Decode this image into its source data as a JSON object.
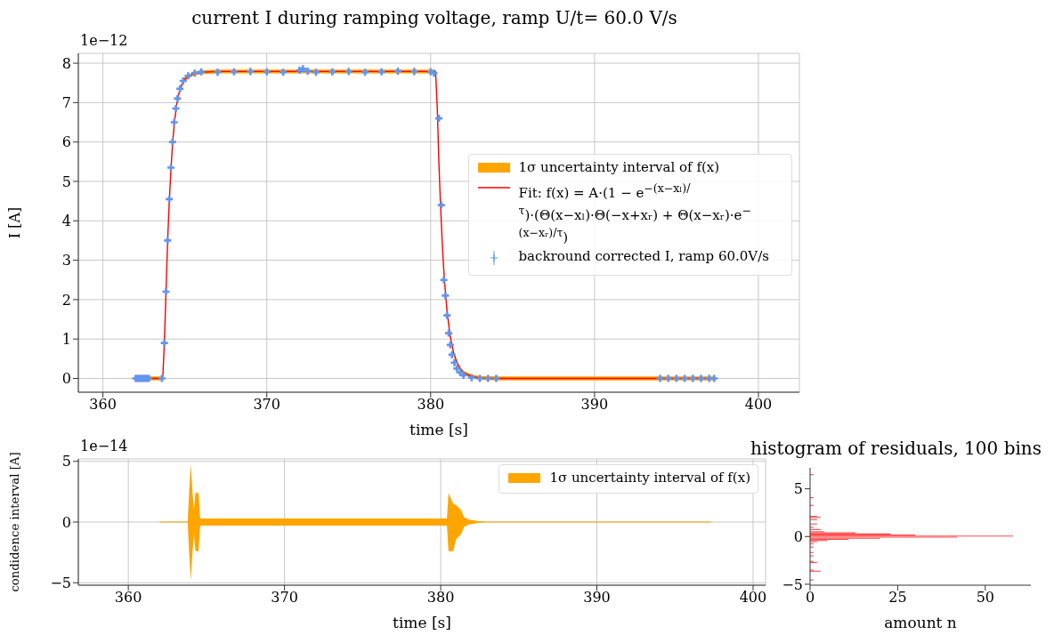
{
  "chart_data": [
    {
      "type": "line",
      "title": "current I during ramping voltage, ramp U/t= 60.0 V/s",
      "xlabel": "time [s]",
      "ylabel": "I [A]",
      "xlim": [
        358.5,
        402.5
      ],
      "xticks": [
        360,
        370,
        380,
        390,
        400
      ],
      "ylim": [
        -0.35,
        8.25
      ],
      "yticks": [
        0,
        1,
        2,
        3,
        4,
        5,
        6,
        7,
        8
      ],
      "grid": true,
      "legend": "right",
      "annotations": [
        "1e−12"
      ],
      "series": [
        {
          "type": "area",
          "name": "1σ uncertainty interval of f(x)",
          "color": "#ffa500",
          "x": [
            362,
            363.65,
            363.75,
            363.85,
            363.95,
            364.05,
            364.15,
            364.25,
            364.35,
            364.5,
            364.7,
            365,
            365.5,
            366,
            367,
            380.3,
            380.4,
            380.5,
            380.6,
            380.7,
            380.8,
            380.9,
            381,
            381.2,
            381.4,
            381.6,
            381.8,
            382,
            382.5,
            383,
            384,
            397.3
          ],
          "values": [
            null,
            null,
            null,
            null,
            null,
            null,
            null,
            null,
            null,
            null,
            null,
            null,
            null,
            null,
            null,
            null,
            null,
            null,
            null,
            null,
            null,
            null,
            null,
            null,
            null,
            null,
            null,
            null,
            null,
            null,
            null,
            null
          ],
          "lower": [
            -0.05,
            -0.05,
            0.85,
            2.15,
            3.45,
            4.45,
            5.25,
            5.9,
            6.4,
            6.9,
            7.3,
            7.55,
            7.68,
            7.72,
            7.74,
            7.74,
            6.85,
            5.45,
            4.35,
            3.45,
            2.7,
            2.15,
            1.65,
            1.0,
            0.6,
            0.35,
            0.2,
            0.1,
            0.0,
            -0.04,
            -0.05,
            -0.05
          ],
          "upper": [
            0.05,
            0.05,
            0.95,
            2.25,
            3.55,
            4.55,
            5.35,
            6.0,
            6.5,
            7.0,
            7.4,
            7.65,
            7.78,
            7.82,
            7.84,
            7.84,
            6.95,
            5.55,
            4.45,
            3.55,
            2.8,
            2.25,
            1.75,
            1.1,
            0.7,
            0.45,
            0.3,
            0.2,
            0.1,
            0.06,
            0.05,
            0.05
          ]
        },
        {
          "type": "line",
          "name": "Fit: f(x) = A·(1 − e$^{−(x−xₗ)/τ}$)·(Θ(x−xₗ)·Θ(−x+xᵣ) + Θ(x−xᵣ)·e$^{−(x−xᵣ)/τ}$)",
          "color": "#ff0000",
          "x": [
            362,
            363.65,
            363.75,
            363.85,
            363.95,
            364.05,
            364.15,
            364.25,
            364.35,
            364.5,
            364.7,
            365,
            365.5,
            366,
            367,
            380.3,
            380.4,
            380.5,
            380.6,
            380.7,
            380.8,
            380.9,
            381,
            381.2,
            381.4,
            381.6,
            381.8,
            382,
            382.5,
            383,
            384,
            397.3
          ],
          "values": [
            0,
            0,
            0.9,
            2.2,
            3.5,
            4.5,
            5.3,
            5.95,
            6.45,
            6.95,
            7.35,
            7.6,
            7.73,
            7.77,
            7.79,
            7.79,
            6.9,
            5.5,
            4.4,
            3.5,
            2.75,
            2.2,
            1.7,
            1.05,
            0.65,
            0.4,
            0.25,
            0.15,
            0.05,
            0.01,
            0,
            0
          ]
        },
        {
          "type": "scatter",
          "marker": "cross",
          "name": "backround corrected I, ramp 60.0V/s",
          "color": "#6495ed",
          "x": [
            362,
            362.1,
            362.2,
            362.3,
            362.4,
            362.5,
            362.6,
            362.7,
            362.8,
            363.6,
            363.75,
            363.85,
            363.95,
            364.05,
            364.15,
            364.25,
            364.35,
            364.45,
            364.55,
            364.7,
            364.9,
            365.2,
            365.6,
            366,
            367,
            368,
            369,
            370,
            371,
            372,
            372.2,
            372.5,
            373,
            374,
            375,
            376,
            377,
            378,
            379,
            380,
            380.2,
            380.5,
            380.65,
            380.8,
            380.9,
            381,
            381.1,
            381.2,
            381.3,
            381.45,
            381.6,
            381.8,
            382,
            382.5,
            383,
            383.5,
            384,
            394,
            394.5,
            395,
            395.5,
            396,
            396.5,
            397,
            397.3
          ],
          "values": [
            0,
            0,
            0,
            0,
            0,
            0,
            0,
            0,
            0,
            0,
            0.9,
            2.2,
            3.5,
            4.55,
            5.35,
            6.0,
            6.5,
            6.85,
            7.1,
            7.35,
            7.55,
            7.68,
            7.75,
            7.78,
            7.77,
            7.78,
            7.79,
            7.78,
            7.77,
            7.82,
            7.86,
            7.8,
            7.77,
            7.78,
            7.79,
            7.77,
            7.78,
            7.8,
            7.79,
            7.78,
            7.75,
            6.6,
            4.4,
            2.5,
            2.1,
            1.6,
            1.15,
            0.85,
            0.6,
            0.4,
            0.25,
            0.15,
            0.08,
            0.02,
            0,
            0,
            0,
            0,
            0,
            0,
            0,
            0,
            0,
            0,
            0
          ]
        }
      ]
    },
    {
      "type": "area",
      "xlabel": "time [s]",
      "ylabel": "condidence interval [A]",
      "xlim": [
        356.8,
        400.8
      ],
      "xticks": [
        360,
        370,
        380,
        390,
        400
      ],
      "ylim": [
        -5.2,
        5.2
      ],
      "yticks": [
        -5,
        0,
        5
      ],
      "grid": true,
      "legend": "top right",
      "annotations": [
        "1e−14"
      ],
      "series": [
        {
          "type": "line",
          "name": "1σ uncertainty interval of f(x)",
          "color": "#ffa500",
          "x": [
            362,
            363.8,
            363.9,
            364.0,
            364.1,
            364.2,
            364.3,
            364.5,
            364.6,
            365,
            380.4,
            380.5,
            380.8,
            381.0,
            381.3,
            381.5,
            381.8,
            382.5,
            383,
            397.3
          ],
          "values": [
            0,
            0,
            0,
            0,
            0,
            0,
            0,
            0,
            0,
            0,
            0,
            0,
            0,
            0,
            0,
            0,
            0,
            0,
            0,
            0
          ],
          "lower": [
            0,
            0,
            -2.7,
            -4.8,
            -2.7,
            -1,
            -2.4,
            -2.4,
            -0.3,
            -0.3,
            -0.3,
            -2.4,
            -2.4,
            -1.4,
            -1,
            -0.4,
            -0.2,
            -0.05,
            0,
            0
          ],
          "upper": [
            0,
            0,
            2.7,
            4.8,
            2.7,
            1,
            2.4,
            2.4,
            0.3,
            0.3,
            0.3,
            2.4,
            1.5,
            1.4,
            1,
            0.4,
            0.2,
            0.05,
            0,
            0
          ]
        }
      ]
    },
    {
      "type": "histogram",
      "orientation": "horizontal",
      "title": "histogram of residuals, 100 bins",
      "xlabel": "amount n",
      "xlim": [
        0,
        63
      ],
      "xticks": [
        0,
        25,
        50
      ],
      "ylim": [
        -5.1,
        7.2
      ],
      "yticks": [
        -5,
        0,
        5
      ],
      "color": "#ff4d4d",
      "bins": [
        -4.85,
        -4.735,
        -4.62,
        -4.505,
        -4.39,
        -4.275,
        -4.16,
        -4.045,
        -3.93,
        -3.815,
        -3.7,
        -3.585,
        -3.47,
        -3.355,
        -3.24,
        -3.125,
        -3.01,
        -2.895,
        -2.78,
        -2.665,
        -2.55,
        -2.435,
        -2.32,
        -2.205,
        -2.09,
        -1.975,
        -1.86,
        -1.745,
        -1.63,
        -1.515,
        -1.4,
        -1.285,
        -1.17,
        -1.055,
        -0.94,
        -0.825,
        -0.71,
        -0.595,
        -0.48,
        -0.365,
        -0.25,
        -0.135,
        -0.02,
        0.095,
        0.21,
        0.325,
        0.44,
        0.555,
        0.67,
        0.785,
        0.9,
        1.015,
        1.13,
        1.245,
        1.36,
        1.475,
        1.59,
        1.705,
        1.82,
        1.935,
        2.05,
        2.165,
        2.28,
        2.395,
        2.51,
        2.625,
        2.74,
        2.855,
        2.97,
        3.085,
        3.2,
        3.315,
        3.43,
        3.545,
        3.66,
        3.775,
        3.89,
        4.005,
        4.12,
        4.235,
        4.35,
        4.465,
        4.58,
        4.695,
        4.81,
        4.925,
        5.04,
        5.155,
        5.27,
        5.385,
        5.5,
        5.615,
        5.73,
        5.845,
        5.96,
        6.075,
        6.19,
        6.305,
        6.42,
        6.535,
        6.65
      ],
      "values": [
        0,
        0,
        1,
        0,
        0,
        0,
        0,
        0,
        0,
        0,
        3,
        1,
        0,
        0,
        0,
        0,
        0,
        0,
        2,
        1,
        0,
        0,
        0,
        0,
        1,
        0,
        0,
        1,
        0,
        0,
        0,
        0,
        1,
        0,
        0,
        1,
        0,
        2,
        5,
        11,
        20,
        42,
        58,
        30,
        23,
        13,
        4,
        0,
        3,
        0,
        1,
        0,
        0,
        2,
        0,
        0,
        0,
        2,
        0,
        3,
        2,
        0,
        0,
        0,
        0,
        0,
        0,
        0,
        0,
        0,
        1,
        0,
        0,
        0,
        0,
        0,
        0,
        1,
        0,
        0,
        0,
        0,
        0,
        0,
        0,
        0,
        0,
        0,
        0,
        0,
        0,
        0,
        0,
        0,
        0,
        0,
        0,
        0,
        1,
        0
      ]
    }
  ]
}
